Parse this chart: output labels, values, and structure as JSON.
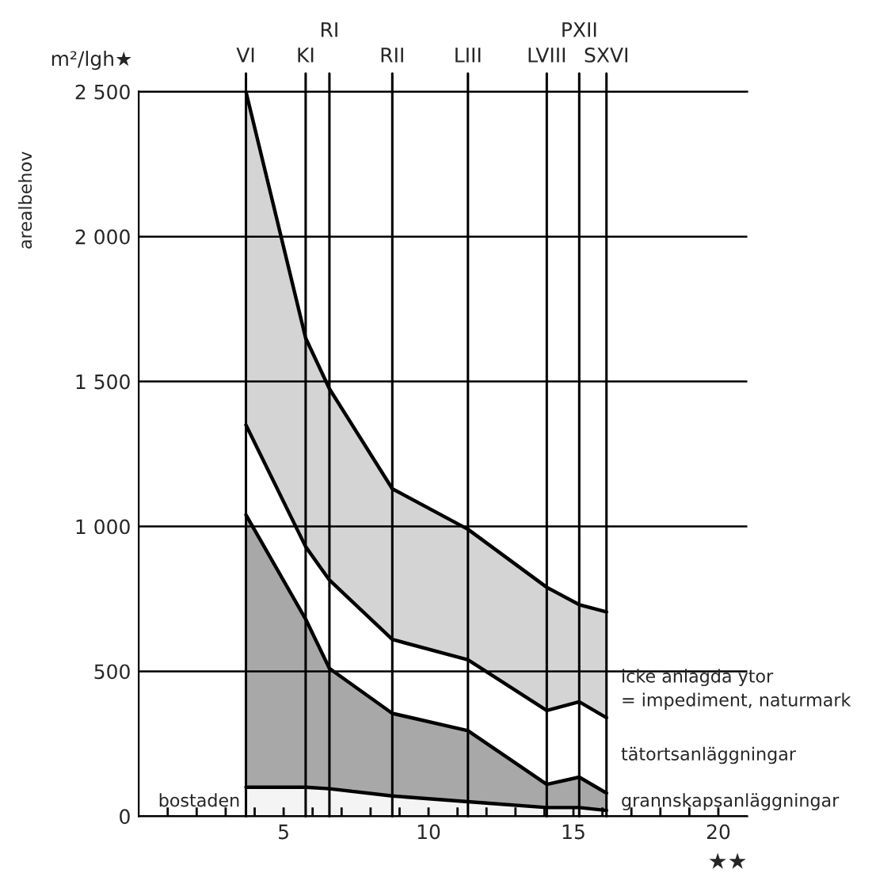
{
  "chart_data": {
    "type": "area",
    "stacked": true,
    "ylabel": "arealbehov",
    "xlabel": "★★",
    "annotations": [
      "m²/lgh★"
    ],
    "x": [
      3.7,
      5.76,
      6.58,
      8.75,
      11.36,
      14.08,
      15.2,
      16.14
    ],
    "series": [
      {
        "name": "bostaden",
        "color": "#f4f4f4",
        "values": [
          100,
          100,
          95,
          70,
          50,
          30,
          30,
          20
        ]
      },
      {
        "name": "grannskapsanläggningar",
        "color": "#a8a8a8",
        "values": [
          940,
          580,
          415,
          285,
          245,
          80,
          105,
          60
        ]
      },
      {
        "name": "tätortsanläggningar",
        "color": "#ffffff",
        "values": [
          310,
          250,
          305,
          255,
          245,
          255,
          260,
          260
        ]
      },
      {
        "name": "icke anlagda ytor\n= impediment, naturmark",
        "color": "#d4d4d4",
        "values": [
          1150,
          720,
          660,
          520,
          450,
          425,
          335,
          365
        ]
      }
    ],
    "xlim": [
      0,
      21
    ],
    "ylim": [
      0,
      2500
    ],
    "xticks": [
      {
        "value": 1,
        "label": null
      },
      {
        "value": 2,
        "label": null
      },
      {
        "value": 3,
        "label": null
      },
      {
        "value": 4,
        "label": null
      },
      5,
      {
        "value": 6,
        "label": null
      },
      {
        "value": 7,
        "label": null
      },
      {
        "value": 8,
        "label": null
      },
      {
        "value": 9,
        "label": null
      },
      10,
      {
        "value": 11,
        "label": null
      },
      {
        "value": 12,
        "label": null
      },
      {
        "value": 13,
        "label": null
      },
      {
        "value": 14,
        "label": null
      },
      15,
      {
        "value": 16,
        "label": null
      },
      {
        "value": 17,
        "label": null
      },
      {
        "value": 18,
        "label": null
      },
      {
        "value": 19,
        "label": null
      },
      20
    ],
    "yticks": [
      0,
      500,
      {
        "value": 1000,
        "label": "1 000"
      },
      {
        "value": 1500,
        "label": "1 500"
      },
      {
        "value": 2000,
        "label": "2 000"
      },
      {
        "value": 2500,
        "label": "2 500"
      }
    ],
    "ref_lines": [
      {
        "axis": "x",
        "value": 3.7,
        "label": "VI"
      },
      {
        "axis": "x",
        "value": 5.76,
        "label": "KI"
      },
      {
        "axis": "x",
        "value": 6.58,
        "label": "RI"
      },
      {
        "axis": "x",
        "value": 8.75,
        "label": "RII"
      },
      {
        "axis": "x",
        "value": 11.36,
        "label": "LIII"
      },
      {
        "axis": "x",
        "value": 14.08,
        "label": "LVIII"
      },
      {
        "axis": "x",
        "value": 15.2,
        "label": "PXII"
      },
      {
        "axis": "x",
        "value": 16.14,
        "label": "SXVI"
      }
    ],
    "grid": "y",
    "legend": false
  }
}
